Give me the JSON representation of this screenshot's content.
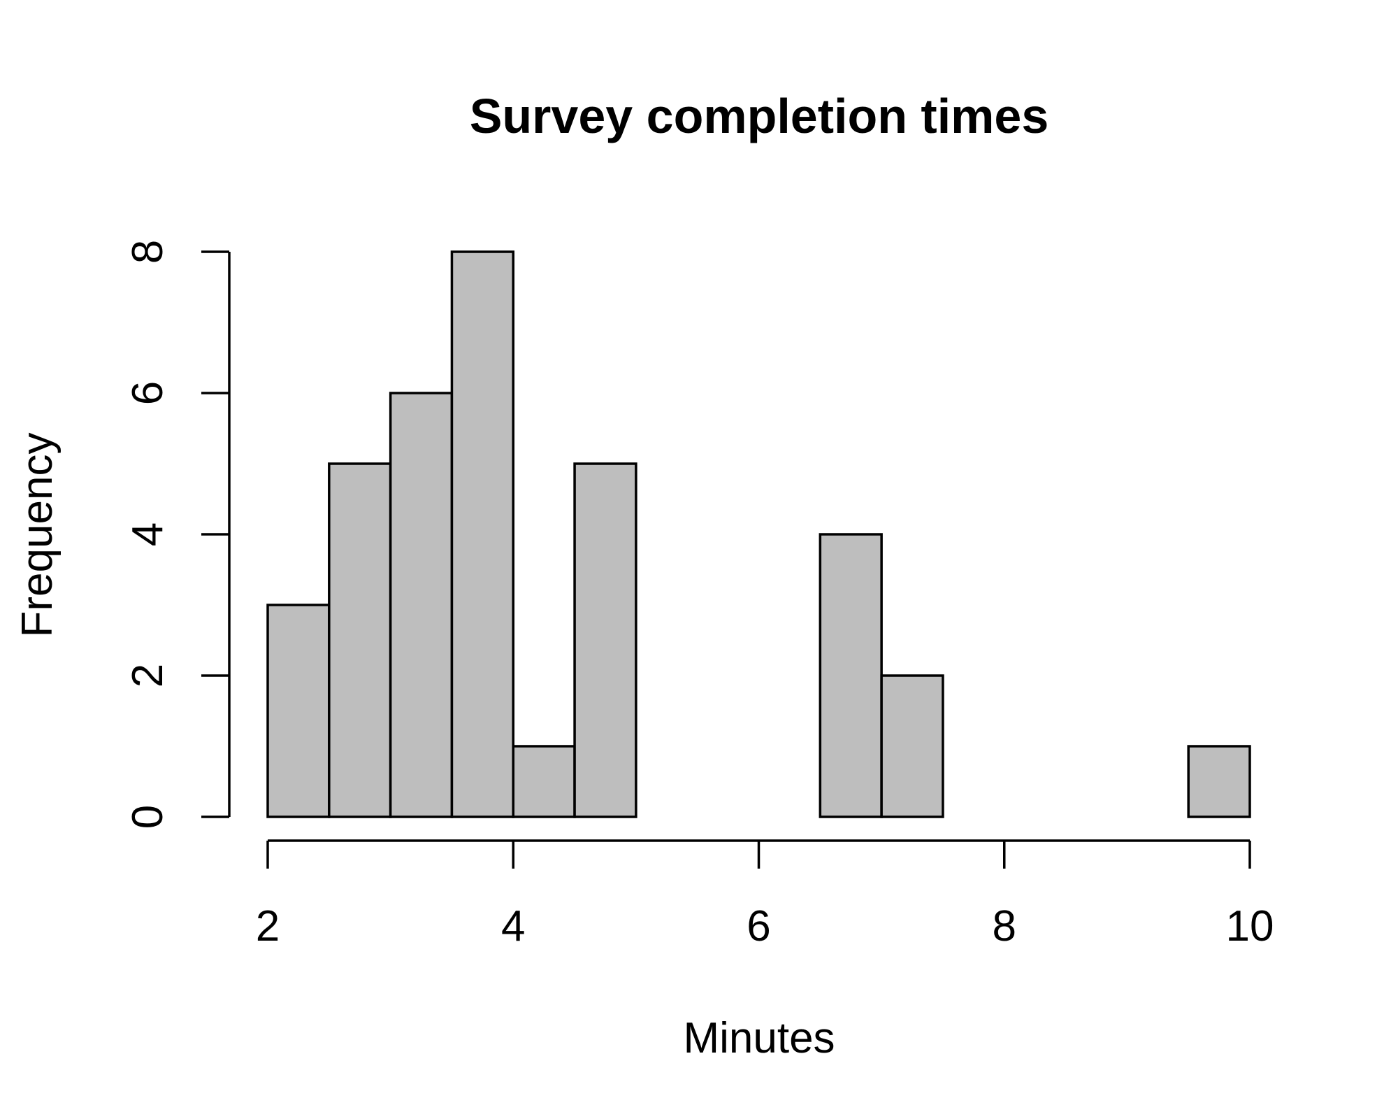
{
  "chart_data": {
    "type": "bar",
    "subtype": "histogram",
    "title": "Survey completion times",
    "xlabel": "Minutes",
    "ylabel": "Frequency",
    "bin_edges": [
      2,
      2.5,
      3,
      3.5,
      4,
      4.5,
      5,
      5.5,
      6,
      6.5,
      7,
      7.5,
      8,
      8.5,
      9,
      9.5,
      10
    ],
    "values": [
      3,
      5,
      6,
      8,
      1,
      5,
      0,
      0,
      0,
      4,
      2,
      0,
      0,
      0,
      0,
      1
    ],
    "xlim": [
      2,
      10
    ],
    "ylim": [
      0,
      8
    ],
    "x_ticks": [
      2,
      4,
      6,
      8,
      10
    ],
    "x_tick_labels": [
      "2",
      "4",
      "6",
      "8",
      "10"
    ],
    "y_ticks": [
      0,
      2,
      4,
      6,
      8
    ],
    "y_tick_labels": [
      "0",
      "2",
      "4",
      "6",
      "8"
    ],
    "bar_color": "#bebebe",
    "edge_color": "#000000",
    "grid": false
  }
}
